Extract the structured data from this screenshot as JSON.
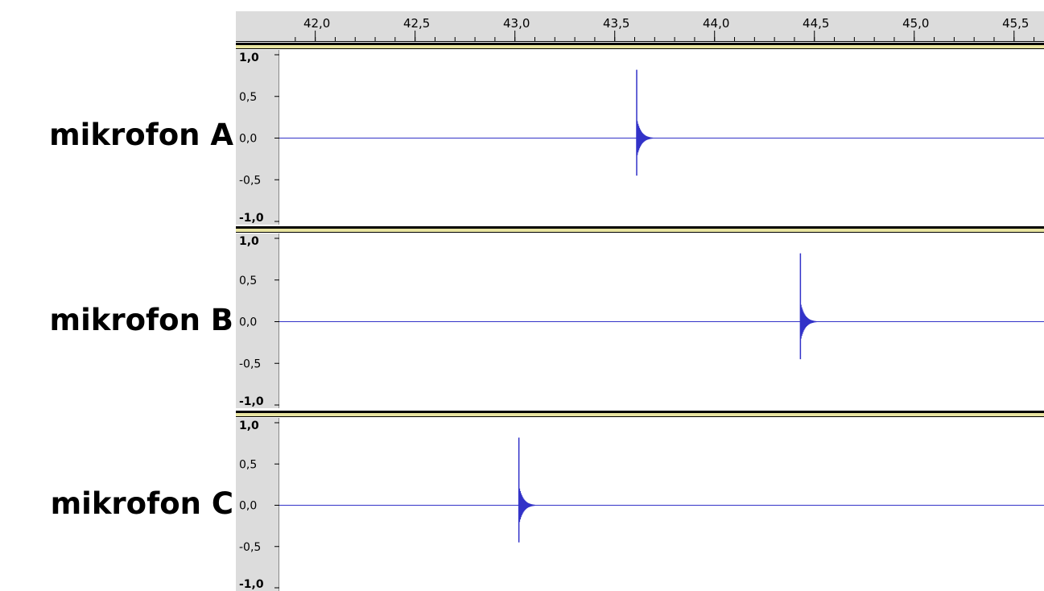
{
  "timeline": {
    "ticks": [
      "42,0",
      "42,5",
      "43,0",
      "43,5",
      "44,0",
      "44,5",
      "45,0",
      "45,5"
    ],
    "range": [
      41.82,
      45.65
    ]
  },
  "tracks": [
    {
      "label": "mikrofon A"
    },
    {
      "label": "mikrofon B"
    },
    {
      "label": "mikrofon C"
    }
  ],
  "colors": {
    "waveform": "#3232c8",
    "ruler_bg": "#dcdcdc",
    "vruler_bg": "#dcdcdc",
    "separator": "#000000",
    "track_top_highlight": "#e8e4a0"
  },
  "chart_data": [
    {
      "type": "line",
      "xlabel": "",
      "ylabel": "",
      "xlim": [
        41.82,
        45.65
      ],
      "ylim": [
        -1.0,
        1.0
      ],
      "yticks": [
        "1,0",
        "0,5",
        "0,0",
        "-0,5",
        "-1,0"
      ],
      "series": [
        {
          "name": "mikrofon A",
          "impulse_time": 43.61,
          "peak": 0.82,
          "trough": -0.45,
          "decay_amplitude": 0.24
        }
      ]
    },
    {
      "type": "line",
      "xlabel": "",
      "ylabel": "",
      "xlim": [
        41.82,
        45.65
      ],
      "ylim": [
        -1.0,
        1.0
      ],
      "yticks": [
        "1,0",
        "0,5",
        "0,0",
        "-0,5",
        "-1,0"
      ],
      "series": [
        {
          "name": "mikrofon B",
          "impulse_time": 44.43,
          "peak": 0.82,
          "trough": -0.45,
          "decay_amplitude": 0.24
        }
      ]
    },
    {
      "type": "line",
      "xlabel": "",
      "ylabel": "",
      "xlim": [
        41.82,
        45.65
      ],
      "ylim": [
        -1.0,
        1.0
      ],
      "yticks": [
        "1,0",
        "0,5",
        "0,0",
        "-0,5",
        "-1,0"
      ],
      "series": [
        {
          "name": "mikrofon C",
          "impulse_time": 43.02,
          "peak": 0.82,
          "trough": -0.45,
          "decay_amplitude": 0.24
        }
      ]
    }
  ]
}
